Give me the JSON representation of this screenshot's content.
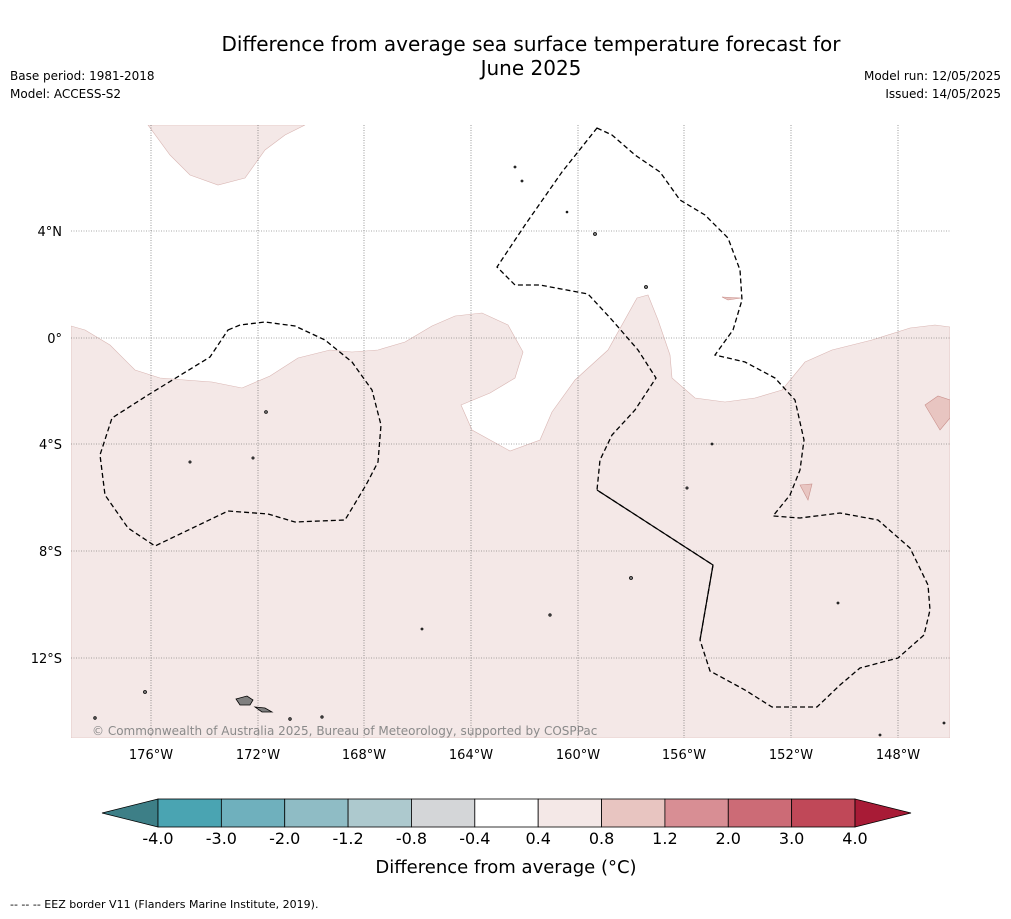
{
  "header": {
    "title_line1": "Difference from average sea surface temperature forecast for",
    "title_line2": "June 2025",
    "base_period": "Base period: 1981-2018",
    "model": "Model: ACCESS-S2",
    "model_run": "Model run: 12/05/2025",
    "issued": "Issued: 14/05/2025"
  },
  "map": {
    "lat_labels": [
      "4°N",
      "0°",
      "4°S",
      "8°S",
      "12°S"
    ],
    "lon_labels": [
      "176°W",
      "172°W",
      "168°W",
      "164°W",
      "160°W",
      "156°W",
      "152°W",
      "148°W"
    ],
    "copyright": "© Commonwealth of Australia 2025, Bureau of Meteorology, supported by COSPPac",
    "colors": {
      "ocean_anomaly_0_4_to_0_8": "#f4e8e7",
      "neutral": "#ffffff",
      "warm_0_8_to_1_2": "#e8c5c1",
      "land": "#808080",
      "eez_border": "#000000"
    }
  },
  "colorbar": {
    "ticks": [
      "-4.0",
      "-3.0",
      "-2.0",
      "-1.2",
      "-0.8",
      "-0.4",
      "0.4",
      "0.8",
      "1.2",
      "2.0",
      "3.0",
      "4.0"
    ],
    "bins": [
      {
        "range": "-4.0 to -3.0",
        "color": "#4aa4b2"
      },
      {
        "range": "-3.0 to -2.0",
        "color": "#6fb0bd"
      },
      {
        "range": "-2.0 to -1.2",
        "color": "#8fbcc5"
      },
      {
        "range": "-1.2 to -0.8",
        "color": "#adc9ce"
      },
      {
        "range": "-0.8 to -0.4",
        "color": "#d4d6d8"
      },
      {
        "range": "-0.4 to 0.4",
        "color": "#ffffff"
      },
      {
        "range": "0.4 to 0.8",
        "color": "#f4e8e7"
      },
      {
        "range": "0.8 to 1.2",
        "color": "#e8c5c1"
      },
      {
        "range": "1.2 to 2.0",
        "color": "#d88e94"
      },
      {
        "range": "2.0 to 3.0",
        "color": "#cc6b76"
      },
      {
        "range": "3.0 to 4.0",
        "color": "#c04858"
      }
    ],
    "under_color": "#3d7f87",
    "over_color": "#a81b36",
    "label": "Difference from average (°C)"
  },
  "footer": {
    "legend": "-- -- -- EEZ border V11 (Flanders Marine Institute, 2019)."
  }
}
